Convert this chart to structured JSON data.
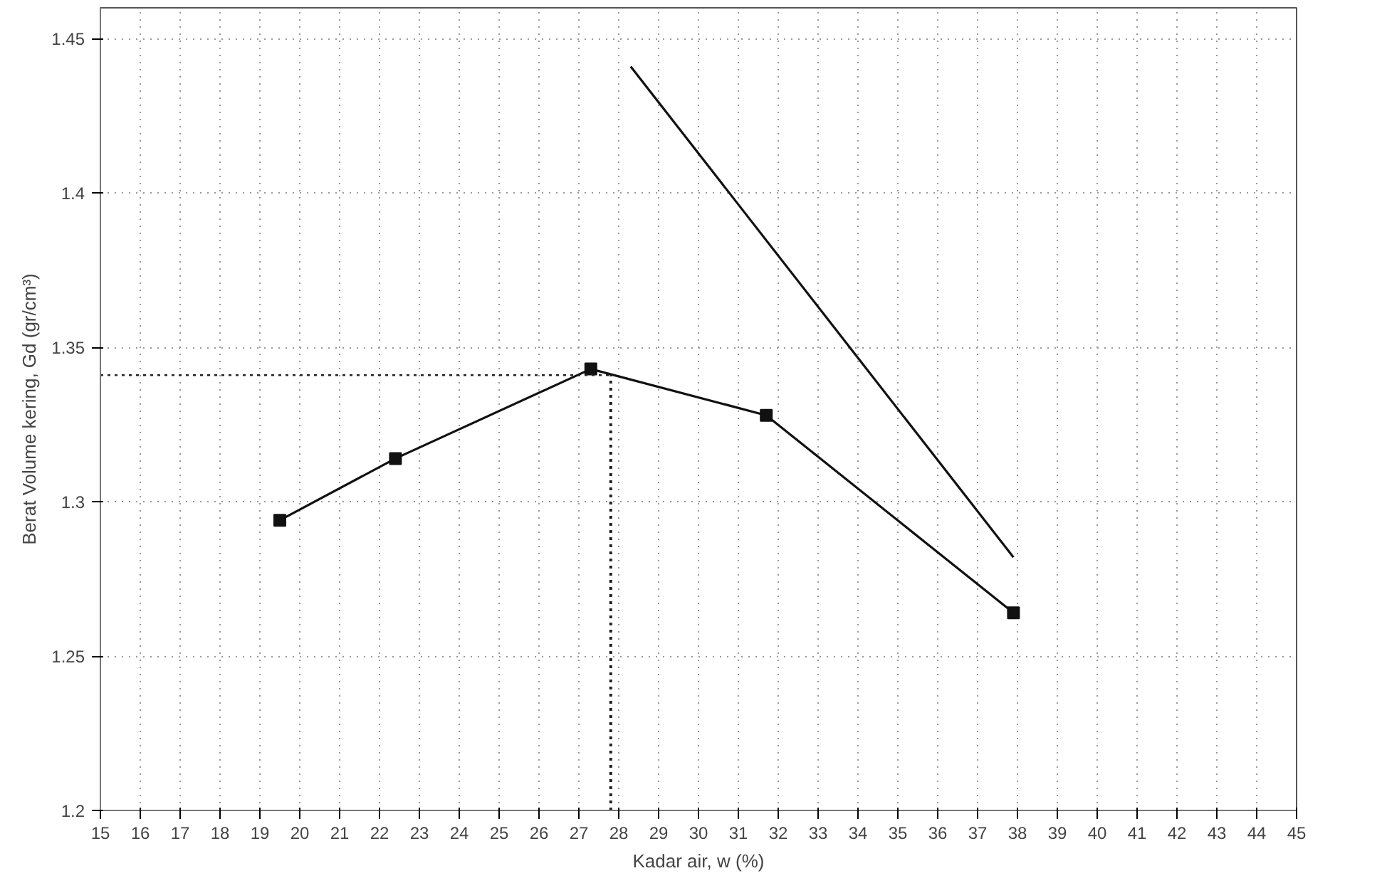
{
  "chart_data": {
    "type": "line",
    "xlabel": "Kadar air, w (%)",
    "ylabel": "Berat Volume kering, Gd (gr/cm³)",
    "xlim": [
      15,
      45
    ],
    "xticks": [
      15,
      16,
      17,
      18,
      19,
      20,
      21,
      22,
      23,
      24,
      25,
      26,
      27,
      28,
      29,
      30,
      31,
      32,
      33,
      34,
      35,
      36,
      37,
      38,
      39,
      40,
      41,
      42,
      43,
      44,
      45
    ],
    "ylim": [
      1.2,
      1.46
    ],
    "yticks": [
      1.2,
      1.25,
      1.3,
      1.35,
      1.4,
      1.45
    ],
    "grid": true,
    "series": [
      {
        "color": "#111111",
        "x": [
          19.5,
          22.4,
          27.3,
          31.7,
          37.9
        ],
        "values": [
          1.294,
          1.314,
          1.343,
          1.328,
          1.264
        ],
        "marker": "square"
      },
      {
        "color": "#111111",
        "x": [
          28.3,
          37.9
        ],
        "values": [
          1.441,
          1.282
        ],
        "marker": "none"
      }
    ],
    "ref_lines": [
      {
        "axis": "y",
        "value": 1.341,
        "line_style": "dotted",
        "color": "#222222"
      },
      {
        "axis": "x",
        "value": 27.8,
        "line_style": "dotted",
        "color": "#222222"
      }
    ]
  }
}
